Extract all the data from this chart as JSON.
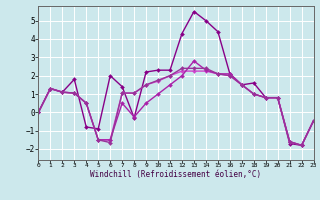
{
  "xlabel": "Windchill (Refroidissement éolien,°C)",
  "xlim": [
    0,
    23
  ],
  "ylim": [
    -2.6,
    5.8
  ],
  "yticks": [
    -2,
    -1,
    0,
    1,
    2,
    3,
    4,
    5
  ],
  "xticks": [
    0,
    1,
    2,
    3,
    4,
    5,
    6,
    7,
    8,
    9,
    10,
    11,
    12,
    13,
    14,
    15,
    16,
    17,
    18,
    19,
    20,
    21,
    22,
    23
  ],
  "bg_color": "#cce8ec",
  "grid_color": "#ffffff",
  "series": [
    {
      "x": [
        0,
        1,
        2,
        3,
        4,
        5,
        6,
        7,
        8,
        9,
        10,
        11,
        12,
        13,
        14,
        15,
        16,
        17,
        18,
        19,
        20,
        21,
        22,
        23
      ],
      "y": [
        0.0,
        1.3,
        1.1,
        1.8,
        -0.8,
        -0.9,
        2.0,
        1.4,
        -0.3,
        2.2,
        2.3,
        2.3,
        4.3,
        5.5,
        5.0,
        4.4,
        2.1,
        1.5,
        1.6,
        0.8,
        0.8,
        -1.7,
        -1.8,
        -0.45
      ],
      "color": "#880088",
      "lw": 1.0
    },
    {
      "x": [
        0,
        1,
        2,
        3,
        4,
        5,
        6,
        7,
        8,
        9,
        10,
        11,
        12,
        13,
        14,
        15,
        16,
        17,
        18,
        19,
        20,
        21,
        22,
        23
      ],
      "y": [
        0.0,
        1.3,
        1.1,
        1.05,
        0.5,
        -1.5,
        -1.5,
        1.05,
        1.05,
        1.5,
        1.7,
        2.0,
        2.25,
        2.25,
        2.25,
        2.1,
        2.0,
        1.5,
        1.0,
        0.8,
        0.8,
        -1.6,
        -1.8,
        -0.45
      ],
      "color": "#cc44cc",
      "lw": 1.0
    },
    {
      "x": [
        0,
        1,
        2,
        3,
        4,
        5,
        6,
        7,
        8,
        9,
        10,
        11,
        12,
        13,
        14,
        15,
        16,
        17,
        18,
        19,
        20,
        21,
        22,
        23
      ],
      "y": [
        0.0,
        1.3,
        1.1,
        1.05,
        0.5,
        -1.5,
        -1.5,
        0.5,
        -0.25,
        0.5,
        1.0,
        1.5,
        2.0,
        2.8,
        2.3,
        2.1,
        2.1,
        1.5,
        1.0,
        0.8,
        0.8,
        -1.6,
        -1.8,
        -0.45
      ],
      "color": "#aa22aa",
      "lw": 1.0
    },
    {
      "x": [
        0,
        1,
        2,
        3,
        4,
        5,
        6,
        7,
        8,
        9,
        10,
        11,
        12,
        13,
        14,
        15,
        16,
        17,
        18,
        19,
        20,
        21,
        22,
        23
      ],
      "y": [
        0.0,
        1.3,
        1.1,
        1.05,
        0.5,
        -1.5,
        -1.65,
        1.05,
        1.05,
        1.5,
        1.75,
        2.0,
        2.4,
        2.4,
        2.4,
        2.1,
        2.0,
        1.5,
        1.0,
        0.8,
        0.8,
        -1.6,
        -1.8,
        -0.45
      ],
      "color": "#993399",
      "lw": 1.0
    }
  ],
  "marker": "D",
  "markersize": 2.0
}
